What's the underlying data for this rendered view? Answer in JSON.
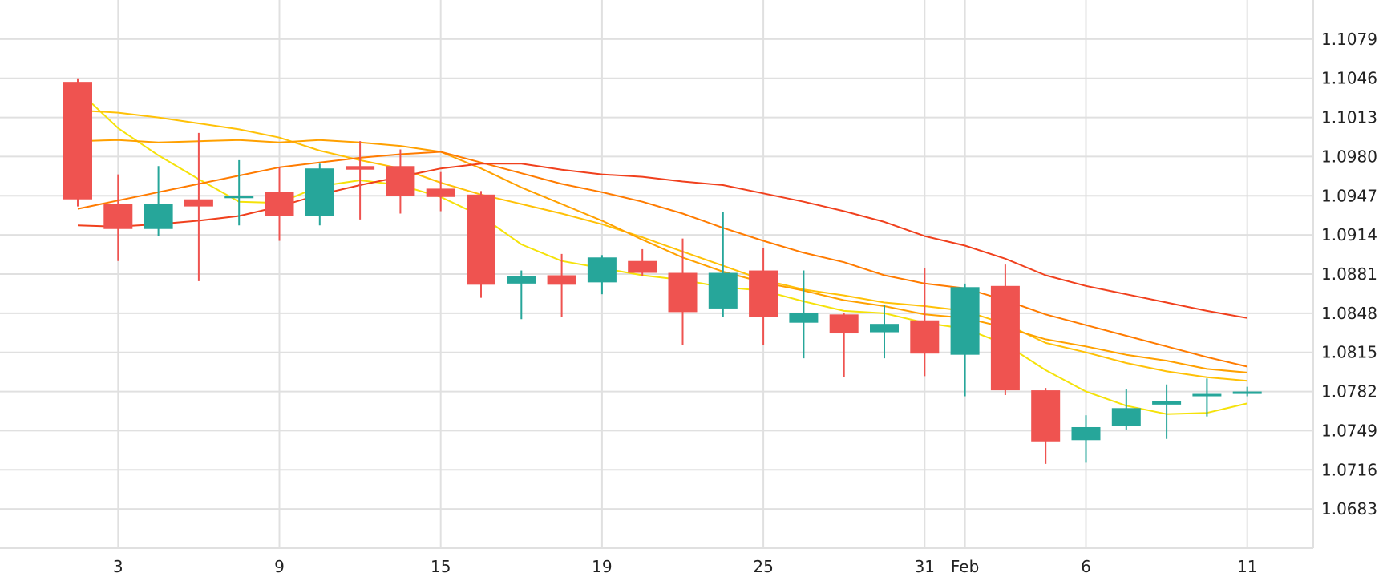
{
  "chart_data": {
    "type": "candlestick",
    "title": "",
    "xlabel": "",
    "ylabel": "",
    "ylim": [
      1.065,
      1.1112
    ],
    "grid": true,
    "y_ticks": [
      "1.1079",
      "1.1046",
      "1.1013",
      "1.0980",
      "1.0947",
      "1.0914",
      "1.0881",
      "1.0848",
      "1.0815",
      "1.0782",
      "1.0749",
      "1.0716",
      "1.0683"
    ],
    "x_ticks": [
      {
        "label": "3",
        "slot": 1
      },
      {
        "label": "9",
        "slot": 5
      },
      {
        "label": "15",
        "slot": 9
      },
      {
        "label": "19",
        "slot": 13
      },
      {
        "label": "25",
        "slot": 17
      },
      {
        "label": "31",
        "slot": 21
      },
      {
        "label": "Feb",
        "slot": 22
      },
      {
        "label": "6",
        "slot": 25
      },
      {
        "label": "11",
        "slot": 29
      }
    ],
    "colors": {
      "up": "#26a69a",
      "down": "#ef5350",
      "grid": "#e0e0e0",
      "axis_text": "#222222"
    },
    "candles": [
      {
        "slot": 0,
        "o": 1.1043,
        "h": 1.1046,
        "l": 1.0938,
        "c": 1.0944
      },
      {
        "slot": 1,
        "o": 1.094,
        "h": 1.0965,
        "l": 1.0892,
        "c": 1.0919
      },
      {
        "slot": 2,
        "o": 1.0919,
        "h": 1.0972,
        "l": 1.0913,
        "c": 1.094
      },
      {
        "slot": 3,
        "o": 1.0944,
        "h": 1.1,
        "l": 1.0875,
        "c": 1.0938
      },
      {
        "slot": 4,
        "o": 1.0945,
        "h": 1.0977,
        "l": 1.0922,
        "c": 1.0947
      },
      {
        "slot": 5,
        "o": 1.095,
        "h": 1.0971,
        "l": 1.0909,
        "c": 1.093
      },
      {
        "slot": 6,
        "o": 1.093,
        "h": 1.0974,
        "l": 1.0922,
        "c": 1.097
      },
      {
        "slot": 7,
        "o": 1.0972,
        "h": 1.0993,
        "l": 1.0927,
        "c": 1.0969
      },
      {
        "slot": 8,
        "o": 1.0972,
        "h": 1.0986,
        "l": 1.0932,
        "c": 1.0947
      },
      {
        "slot": 9,
        "o": 1.0953,
        "h": 1.0967,
        "l": 1.0934,
        "c": 1.0946
      },
      {
        "slot": 10,
        "o": 1.0948,
        "h": 1.0951,
        "l": 1.0861,
        "c": 1.0872
      },
      {
        "slot": 11,
        "o": 1.0873,
        "h": 1.0884,
        "l": 1.0843,
        "c": 1.0879
      },
      {
        "slot": 12,
        "o": 1.088,
        "h": 1.0898,
        "l": 1.0845,
        "c": 1.0872
      },
      {
        "slot": 13,
        "o": 1.0874,
        "h": 1.0897,
        "l": 1.0864,
        "c": 1.0895
      },
      {
        "slot": 14,
        "o": 1.0892,
        "h": 1.0902,
        "l": 1.0879,
        "c": 1.0882
      },
      {
        "slot": 15,
        "o": 1.0882,
        "h": 1.0911,
        "l": 1.0821,
        "c": 1.0849
      },
      {
        "slot": 16,
        "o": 1.0852,
        "h": 1.0933,
        "l": 1.0845,
        "c": 1.0882
      },
      {
        "slot": 17,
        "o": 1.0884,
        "h": 1.0903,
        "l": 1.0821,
        "c": 1.0845
      },
      {
        "slot": 18,
        "o": 1.084,
        "h": 1.0884,
        "l": 1.081,
        "c": 1.0848
      },
      {
        "slot": 19,
        "o": 1.0847,
        "h": 1.0848,
        "l": 1.0794,
        "c": 1.0831
      },
      {
        "slot": 20,
        "o": 1.0832,
        "h": 1.0855,
        "l": 1.081,
        "c": 1.0839
      },
      {
        "slot": 21,
        "o": 1.0842,
        "h": 1.0886,
        "l": 1.0795,
        "c": 1.0814
      },
      {
        "slot": 22,
        "o": 1.0813,
        "h": 1.0873,
        "l": 1.0778,
        "c": 1.087
      },
      {
        "slot": 23,
        "o": 1.0871,
        "h": 1.0889,
        "l": 1.0779,
        "c": 1.0783
      },
      {
        "slot": 24,
        "o": 1.0783,
        "h": 1.0785,
        "l": 1.0721,
        "c": 1.074
      },
      {
        "slot": 25,
        "o": 1.0741,
        "h": 1.0762,
        "l": 1.0722,
        "c": 1.0752
      },
      {
        "slot": 26,
        "o": 1.0753,
        "h": 1.0784,
        "l": 1.075,
        "c": 1.0768
      },
      {
        "slot": 27,
        "o": 1.0771,
        "h": 1.0788,
        "l": 1.0742,
        "c": 1.0774
      },
      {
        "slot": 28,
        "o": 1.0778,
        "h": 1.0793,
        "l": 1.0761,
        "c": 1.078
      },
      {
        "slot": 29,
        "o": 1.078,
        "h": 1.0786,
        "l": 1.0778,
        "c": 1.0782
      }
    ],
    "series": [
      {
        "color": "#f5e20a",
        "values": [
          [
            0,
            1.1036
          ],
          [
            1,
            1.1004
          ],
          [
            2,
            1.0981
          ],
          [
            3,
            1.0961
          ],
          [
            4,
            1.0942
          ],
          [
            5,
            1.0941
          ],
          [
            6,
            1.0955
          ],
          [
            7,
            1.096
          ],
          [
            8,
            1.0956
          ],
          [
            9,
            1.0946
          ],
          [
            10,
            1.093
          ],
          [
            11,
            1.0906
          ],
          [
            12,
            1.0892
          ],
          [
            13,
            1.0886
          ],
          [
            14,
            1.088
          ],
          [
            15,
            1.0876
          ],
          [
            16,
            1.087
          ],
          [
            17,
            1.0867
          ],
          [
            18,
            1.0858
          ],
          [
            19,
            1.085
          ],
          [
            20,
            1.0848
          ],
          [
            21,
            1.084
          ],
          [
            22,
            1.0835
          ],
          [
            23,
            1.0822
          ],
          [
            24,
            1.08
          ],
          [
            25,
            1.0782
          ],
          [
            26,
            1.077
          ],
          [
            27,
            1.0763
          ],
          [
            28,
            1.0764
          ],
          [
            29,
            1.0772
          ]
        ]
      },
      {
        "color": "#ffc107",
        "values": [
          [
            0,
            1.1019
          ],
          [
            1,
            1.1017
          ],
          [
            2,
            1.1013
          ],
          [
            3,
            1.1008
          ],
          [
            4,
            1.1003
          ],
          [
            5,
            1.0996
          ],
          [
            6,
            1.0985
          ],
          [
            7,
            1.0977
          ],
          [
            8,
            1.097
          ],
          [
            9,
            1.0958
          ],
          [
            10,
            1.0948
          ],
          [
            11,
            1.094
          ],
          [
            12,
            1.0932
          ],
          [
            13,
            1.0923
          ],
          [
            14,
            1.0912
          ],
          [
            15,
            1.09
          ],
          [
            16,
            1.0888
          ],
          [
            17,
            1.0876
          ],
          [
            18,
            1.0868
          ],
          [
            19,
            1.0863
          ],
          [
            20,
            1.0857
          ],
          [
            21,
            1.0854
          ],
          [
            22,
            1.085
          ],
          [
            23,
            1.0839
          ],
          [
            24,
            1.0823
          ],
          [
            25,
            1.0815
          ],
          [
            26,
            1.0806
          ],
          [
            27,
            1.0799
          ],
          [
            28,
            1.0794
          ],
          [
            29,
            1.0791
          ]
        ]
      },
      {
        "color": "#ffa000",
        "values": [
          [
            0,
            1.0993
          ],
          [
            1,
            1.0994
          ],
          [
            2,
            1.0992
          ],
          [
            3,
            1.0993
          ],
          [
            4,
            1.0994
          ],
          [
            5,
            1.0992
          ],
          [
            6,
            1.0994
          ],
          [
            7,
            1.0992
          ],
          [
            8,
            1.0989
          ],
          [
            9,
            1.0984
          ],
          [
            10,
            1.097
          ],
          [
            11,
            1.0954
          ],
          [
            12,
            1.094
          ],
          [
            13,
            1.0926
          ],
          [
            14,
            1.091
          ],
          [
            15,
            1.0895
          ],
          [
            16,
            1.0883
          ],
          [
            17,
            1.0874
          ],
          [
            18,
            1.0867
          ],
          [
            19,
            1.0859
          ],
          [
            20,
            1.0854
          ],
          [
            21,
            1.0847
          ],
          [
            22,
            1.0844
          ],
          [
            23,
            1.0836
          ],
          [
            24,
            1.0826
          ],
          [
            25,
            1.082
          ],
          [
            26,
            1.0813
          ],
          [
            27,
            1.0808
          ],
          [
            28,
            1.0801
          ],
          [
            29,
            1.0798
          ]
        ]
      },
      {
        "color": "#ff7b00",
        "values": [
          [
            0,
            1.0936
          ],
          [
            1,
            1.0943
          ],
          [
            2,
            1.095
          ],
          [
            3,
            1.0957
          ],
          [
            4,
            1.0964
          ],
          [
            5,
            1.0971
          ],
          [
            6,
            1.0975
          ],
          [
            7,
            1.0979
          ],
          [
            8,
            1.0982
          ],
          [
            9,
            1.0984
          ],
          [
            10,
            1.0975
          ],
          [
            11,
            1.0966
          ],
          [
            12,
            1.0957
          ],
          [
            13,
            1.095
          ],
          [
            14,
            1.0942
          ],
          [
            15,
            1.0932
          ],
          [
            16,
            1.092
          ],
          [
            17,
            1.0909
          ],
          [
            18,
            1.0899
          ],
          [
            19,
            1.0891
          ],
          [
            20,
            1.088
          ],
          [
            21,
            1.0873
          ],
          [
            22,
            1.0869
          ],
          [
            23,
            1.0859
          ],
          [
            24,
            1.0847
          ],
          [
            25,
            1.0838
          ],
          [
            26,
            1.0829
          ],
          [
            27,
            1.082
          ],
          [
            28,
            1.0811
          ],
          [
            29,
            1.0803
          ]
        ]
      },
      {
        "color": "#f0401d",
        "values": [
          [
            0,
            1.0922
          ],
          [
            1,
            1.0921
          ],
          [
            2,
            1.0923
          ],
          [
            3,
            1.0926
          ],
          [
            4,
            1.093
          ],
          [
            5,
            1.0938
          ],
          [
            6,
            1.0948
          ],
          [
            7,
            1.0956
          ],
          [
            8,
            1.0963
          ],
          [
            9,
            1.097
          ],
          [
            10,
            1.0974
          ],
          [
            11,
            1.0974
          ],
          [
            12,
            1.0969
          ],
          [
            13,
            1.0965
          ],
          [
            14,
            1.0963
          ],
          [
            15,
            1.0959
          ],
          [
            16,
            1.0956
          ],
          [
            17,
            1.0949
          ],
          [
            18,
            1.0942
          ],
          [
            19,
            1.0934
          ],
          [
            20,
            1.0925
          ],
          [
            21,
            1.0913
          ],
          [
            22,
            1.0905
          ],
          [
            23,
            1.0894
          ],
          [
            24,
            1.088
          ],
          [
            25,
            1.0871
          ],
          [
            26,
            1.0864
          ],
          [
            27,
            1.0857
          ],
          [
            28,
            1.085
          ],
          [
            29,
            1.0844
          ]
        ]
      }
    ]
  }
}
